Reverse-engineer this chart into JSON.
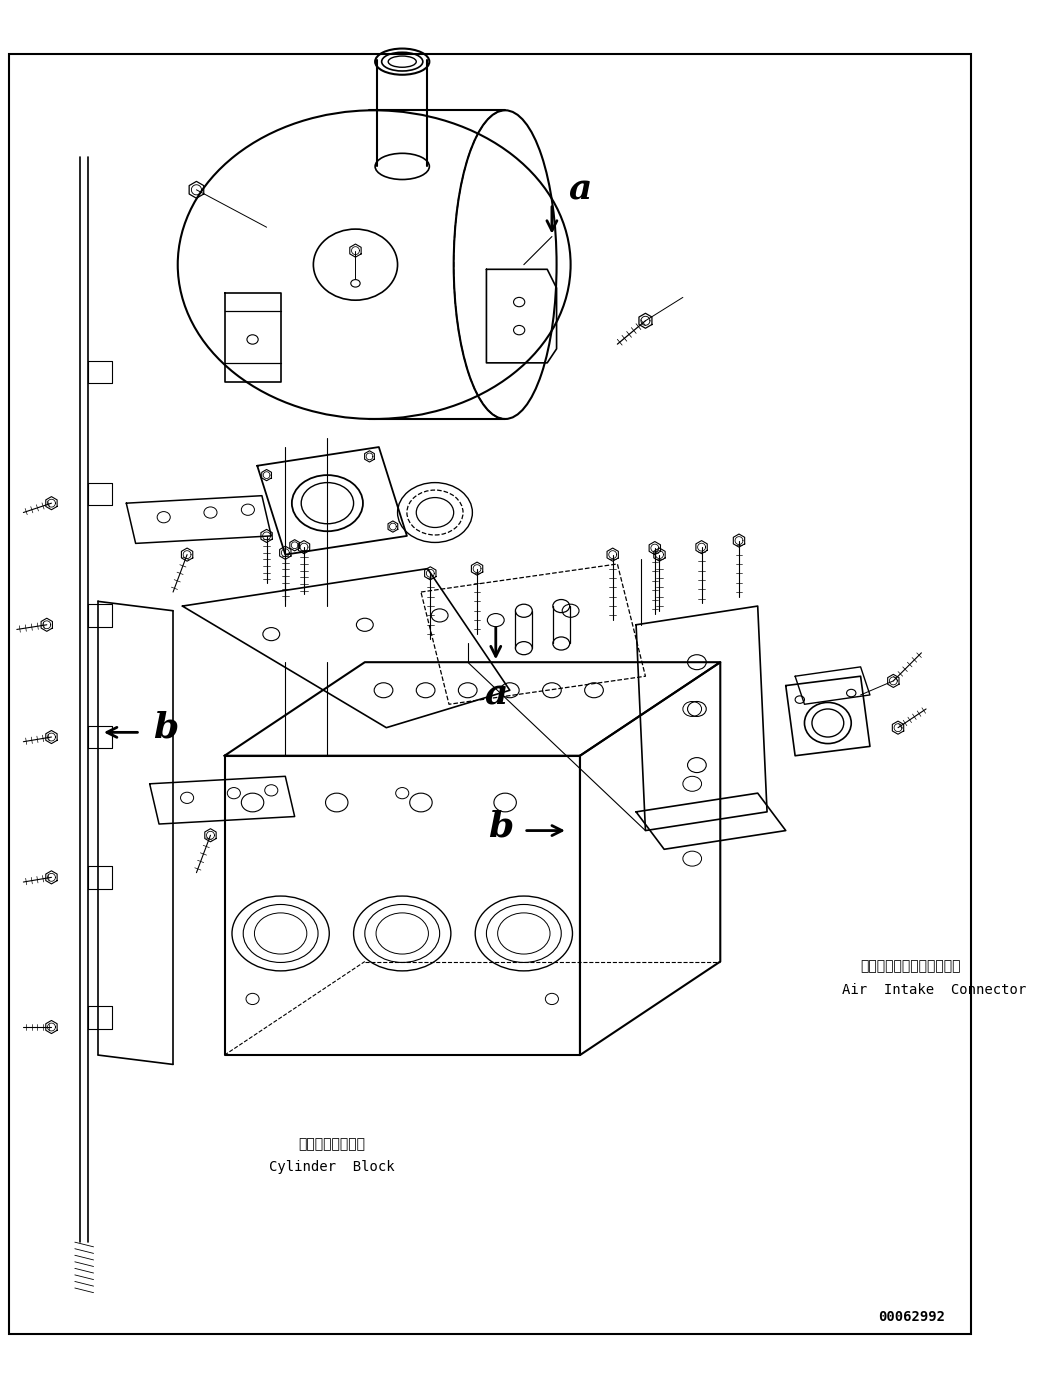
{
  "bg_color": "#ffffff",
  "line_color": "#000000",
  "fig_width": 10.48,
  "fig_height": 13.88,
  "dpi": 100,
  "part_number": "00062992",
  "annotation_air_intake_ja": "エアーインテークコネクタ",
  "annotation_air_intake_en": "Air  Intake  Connector",
  "annotation_cylinder_ja": "シリンダブロック",
  "annotation_cylinder_en": "Cylinder  Block"
}
